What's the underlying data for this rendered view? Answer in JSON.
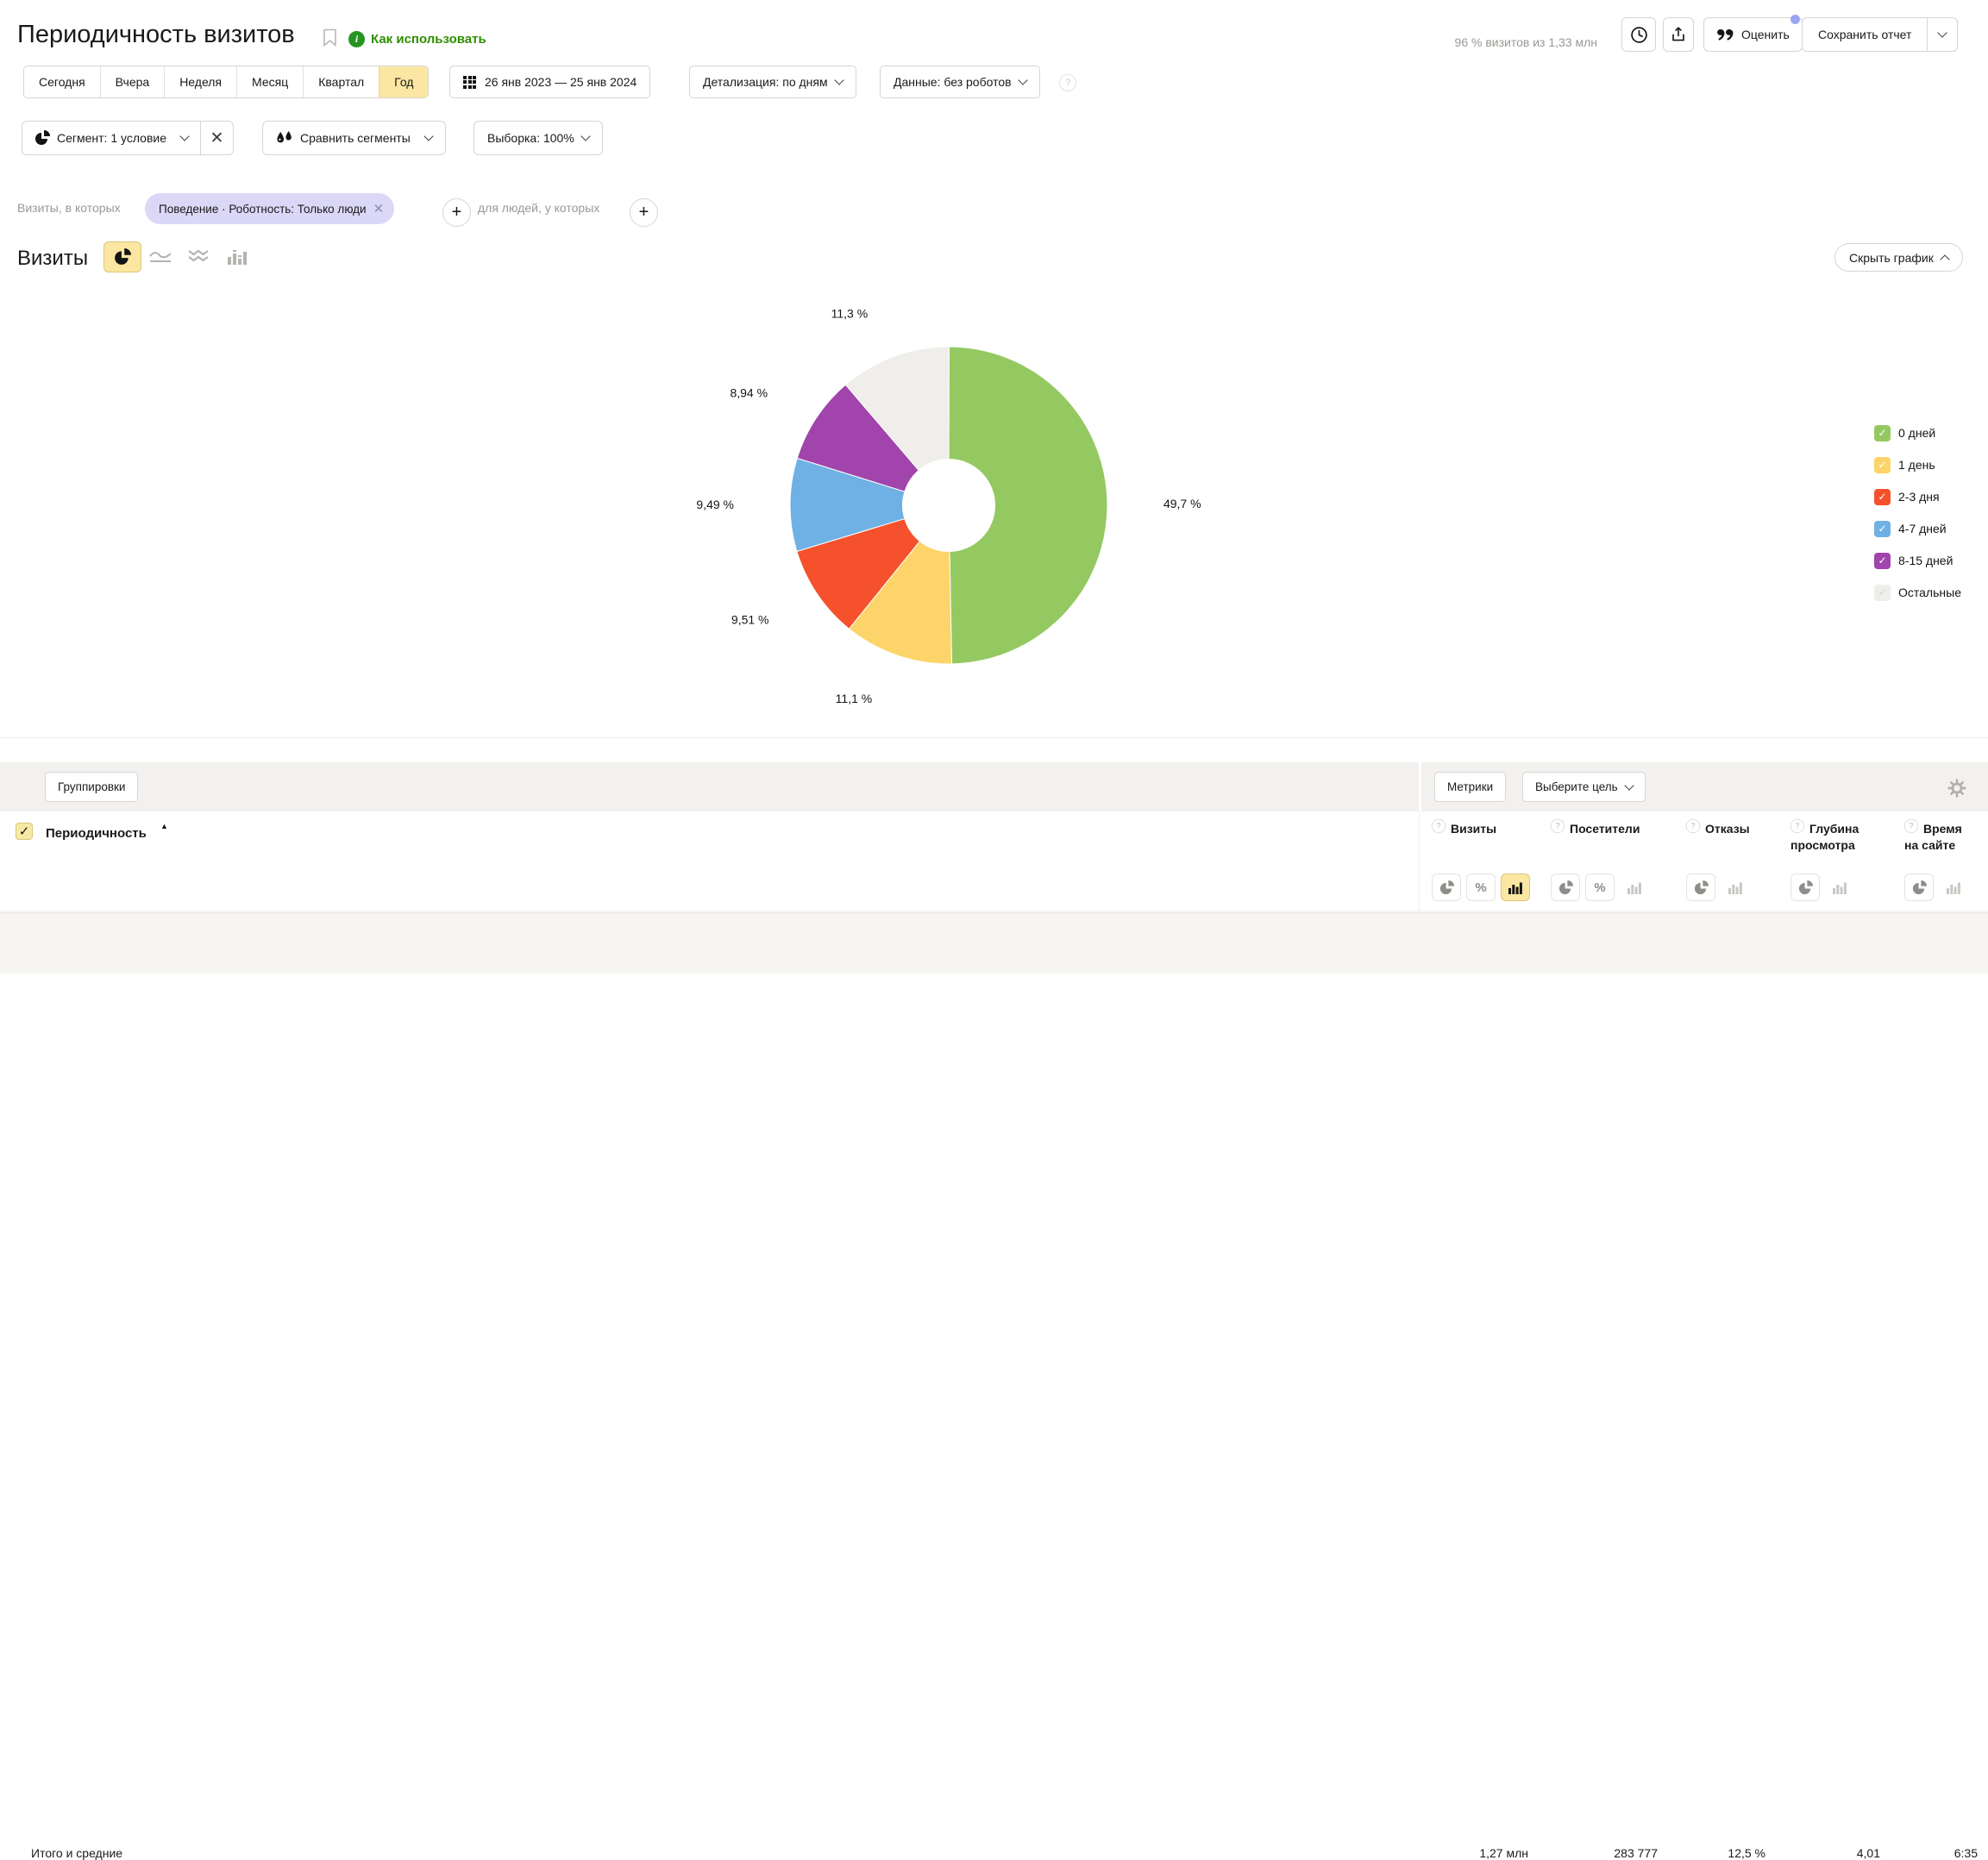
{
  "header": {
    "title": "Периодичность визитов",
    "how_to_use": "Как использовать",
    "sample_note": "96 % визитов из 1,33 млн",
    "rate_label": "Оценить",
    "save_report_label": "Сохранить отчет"
  },
  "period_tabs": {
    "items": [
      "Сегодня",
      "Вчера",
      "Неделя",
      "Месяц",
      "Квартал",
      "Год"
    ],
    "selected": "Год"
  },
  "filters": {
    "date_range": "26 янв 2023 — 25 янв 2024",
    "detail": "Детализация: по дням",
    "data_mode": "Данные: без роботов",
    "segment": "Сегмент: 1 условие",
    "compare": "Сравнить сегменты",
    "sampling": "Выборка: 100%"
  },
  "segment_builder": {
    "visits_label": "Визиты, в которых",
    "chip": "Поведение · Роботность: Только люди",
    "people_label": "для людей, у которых"
  },
  "chart_section": {
    "title": "Визиты",
    "hide_chart_label": "Скрыть график"
  },
  "chart_data": {
    "type": "pie",
    "title": "Визиты",
    "donut": true,
    "categories": [
      "0 дней",
      "1 день",
      "2-3 дня",
      "4-7 дней",
      "8-15 дней",
      "Остальные"
    ],
    "values": [
      49.7,
      11.1,
      9.51,
      9.49,
      8.94,
      11.3
    ],
    "value_labels": [
      "49,7 %",
      "11,1 %",
      "9,51 %",
      "9,49 %",
      "8,94 %",
      "11,3 %"
    ],
    "colors": [
      "#94c961",
      "#fcd469",
      "#f4512c",
      "#6fb1e4",
      "#a144ac",
      "#f0eeea"
    ],
    "legend_position": "right",
    "legend_checked": [
      true,
      true,
      true,
      true,
      true,
      true
    ]
  },
  "table": {
    "groupings_label": "Группировки",
    "metrics_label": "Метрики",
    "goal_label": "Выберите цель",
    "dimension_header": "Периодичность",
    "sort": "asc",
    "metric_columns": [
      {
        "label": "Визиты",
        "modes": [
          {
            "type": "pie"
          },
          {
            "type": "percent"
          },
          {
            "type": "bar",
            "selected": true
          }
        ]
      },
      {
        "label": "Посетители",
        "modes": [
          {
            "type": "pie"
          },
          {
            "type": "percent"
          },
          {
            "type": "bar",
            "disabled": true
          }
        ]
      },
      {
        "label": "Отказы",
        "modes": [
          {
            "type": "pie"
          },
          {
            "type": "bar",
            "disabled": true
          }
        ]
      },
      {
        "label": "Глубина просмотра",
        "modes": [
          {
            "type": "pie"
          },
          {
            "type": "bar",
            "disabled": true
          }
        ]
      },
      {
        "label": "Время на сайте",
        "modes": [
          {
            "type": "pie"
          },
          {
            "type": "bar",
            "disabled": true
          }
        ]
      }
    ],
    "totals": {
      "label": "Итого и средние",
      "values": [
        "1,27 млн",
        "283 777",
        "12,5 %",
        "4,01",
        "6:35"
      ]
    }
  }
}
